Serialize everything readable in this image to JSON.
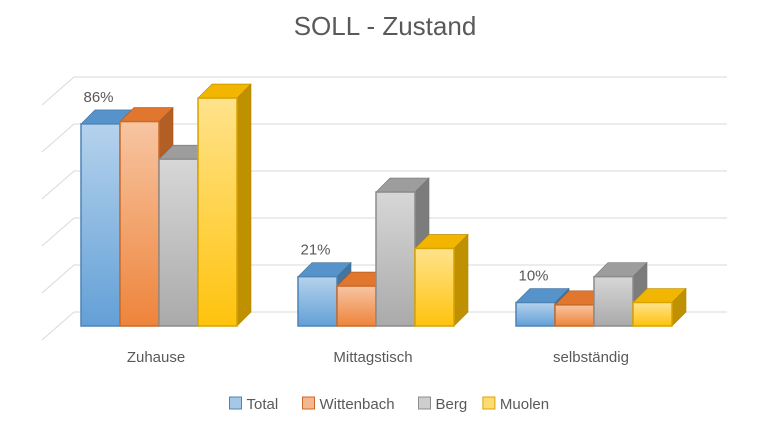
{
  "chart_data": {
    "type": "bar",
    "style": "3d-clustered-column",
    "title": "SOLL - Zustand",
    "xlabel": "",
    "ylabel": "",
    "ylim": [
      0,
      100
    ],
    "grid": true,
    "legend_position": "bottom",
    "categories": [
      "Zuhause",
      "Mittagstisch",
      "selbständig"
    ],
    "series": [
      {
        "name": "Total",
        "color": "#5b9bd5",
        "values": [
          86,
          21,
          10
        ]
      },
      {
        "name": "Wittenbach",
        "color": "#ed7d31",
        "values": [
          87,
          17,
          9
        ]
      },
      {
        "name": "Berg",
        "color": "#a5a5a5",
        "values": [
          71,
          57,
          21
        ]
      },
      {
        "name": "Muolen",
        "color": "#ffc000",
        "values": [
          97,
          33,
          10
        ]
      }
    ],
    "data_labels": [
      {
        "series": "Total",
        "category": "Zuhause",
        "text": "86%"
      },
      {
        "series": "Total",
        "category": "Mittagstisch",
        "text": "21%"
      },
      {
        "series": "Total",
        "category": "selbständig",
        "text": "10%"
      }
    ]
  }
}
